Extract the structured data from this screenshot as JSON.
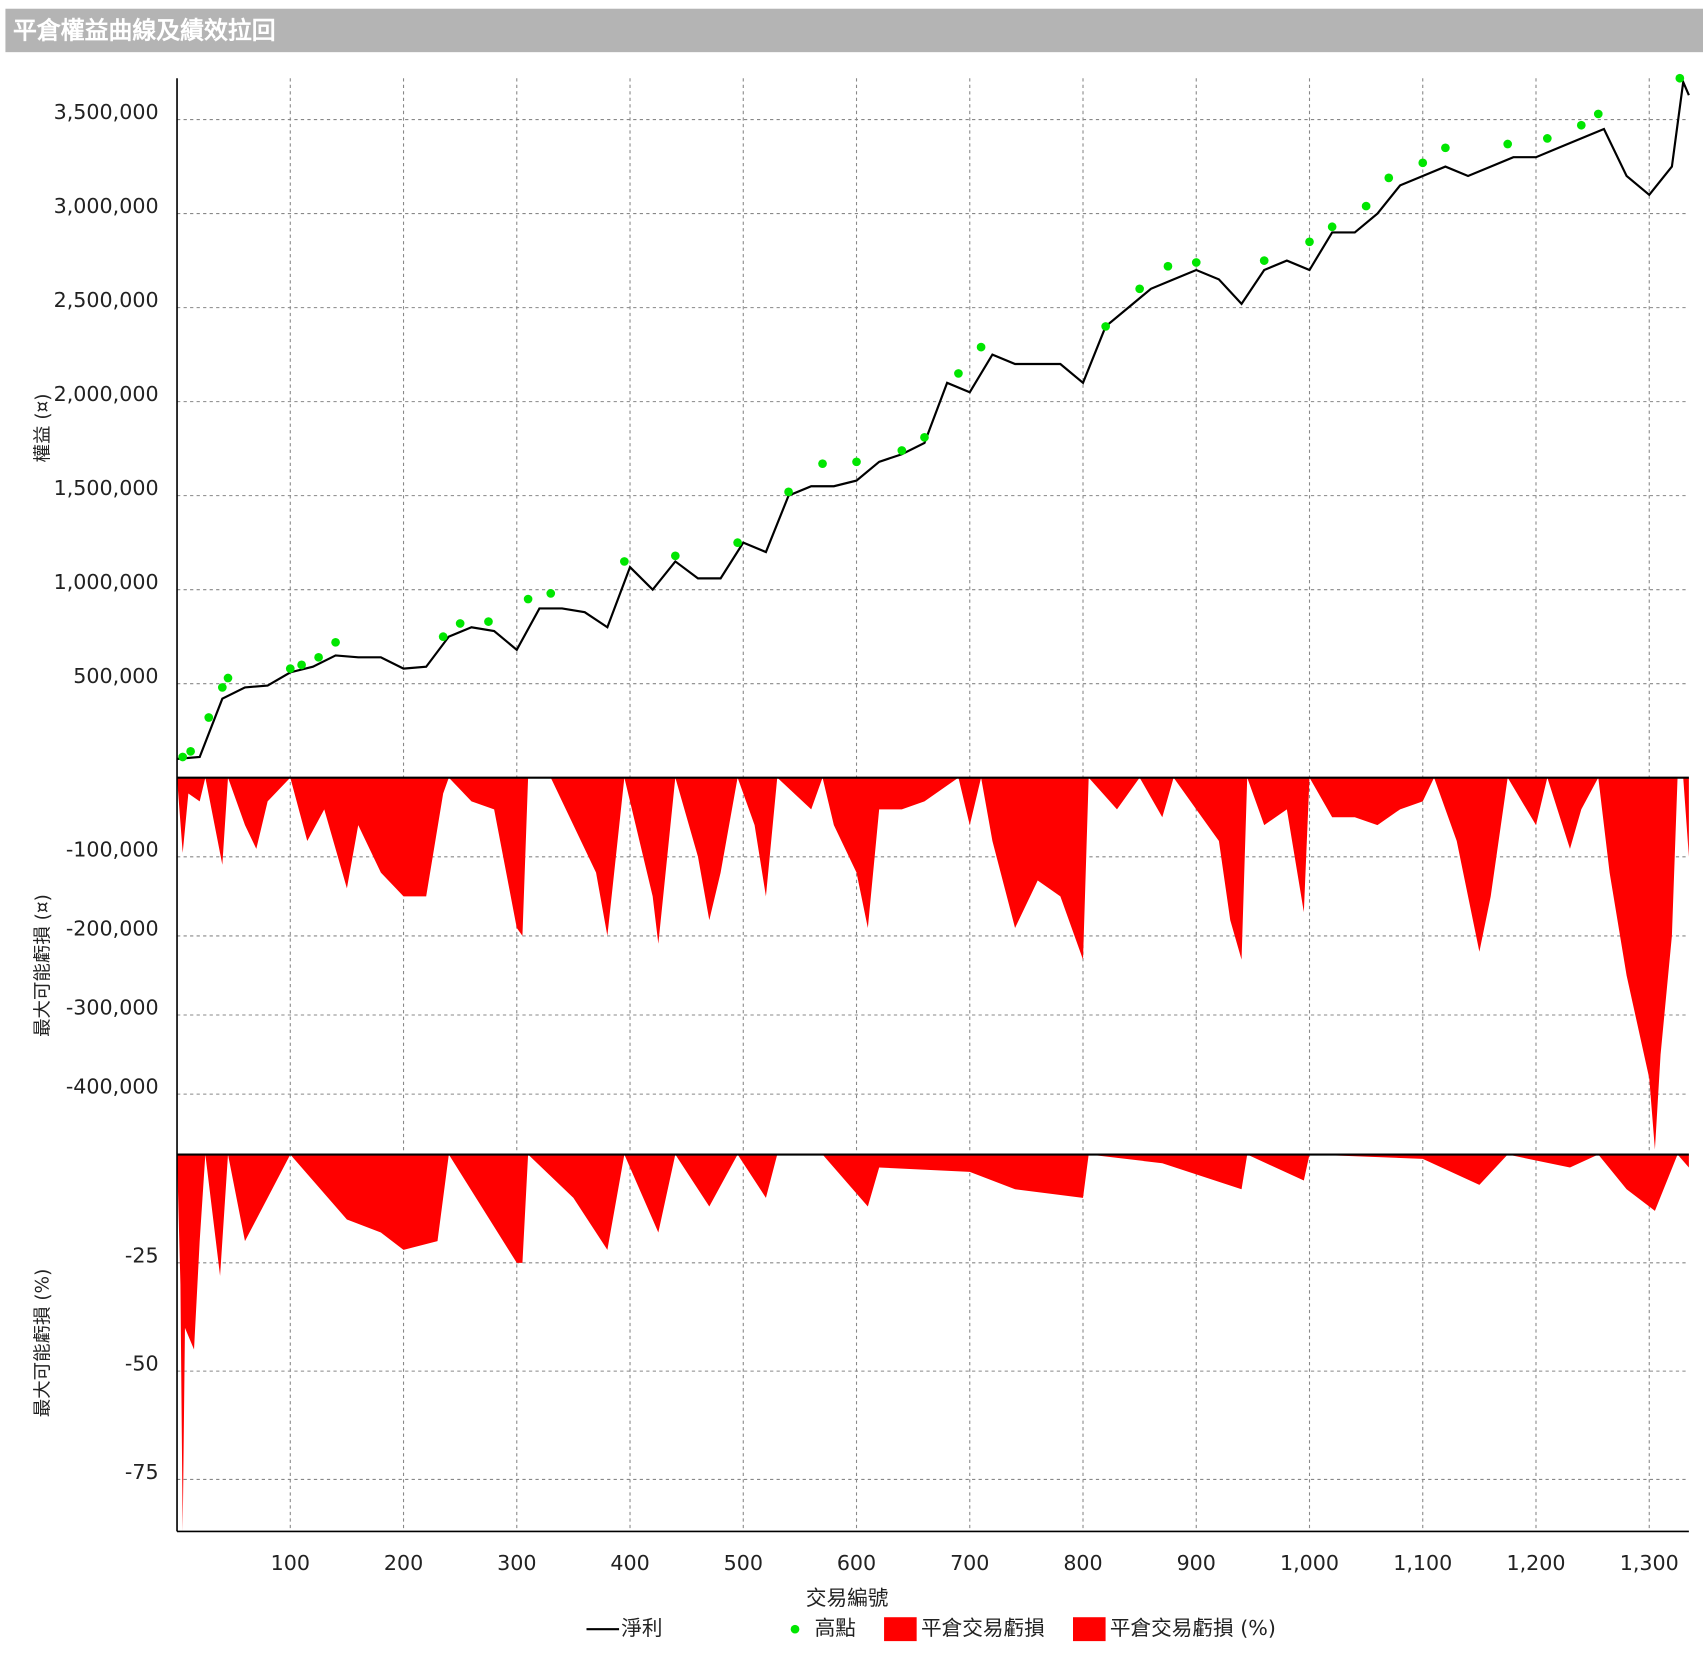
{
  "chart_data": [
    {
      "type": "line",
      "title": "平倉權益曲線及績效拉回",
      "ylabel": "權益 (¤)",
      "ylim": [
        0,
        3720000
      ],
      "yticks": [
        {
          "value": 500000,
          "label": "500,000"
        },
        {
          "value": 1000000,
          "label": "1,000,000"
        },
        {
          "value": 1500000,
          "label": "1,500,000"
        },
        {
          "value": 2000000,
          "label": "2,000,000"
        },
        {
          "value": 2500000,
          "label": "2,500,000"
        },
        {
          "value": 3000000,
          "label": "3,000,000"
        },
        {
          "value": 3500000,
          "label": "3,500,000"
        }
      ],
      "x": [
        0,
        20,
        40,
        60,
        80,
        100,
        120,
        140,
        160,
        180,
        200,
        220,
        240,
        260,
        280,
        300,
        320,
        340,
        360,
        380,
        400,
        420,
        440,
        460,
        480,
        500,
        520,
        540,
        560,
        580,
        600,
        620,
        640,
        660,
        680,
        700,
        720,
        740,
        760,
        780,
        800,
        820,
        840,
        860,
        880,
        900,
        920,
        940,
        960,
        980,
        1000,
        1020,
        1040,
        1060,
        1080,
        1100,
        1120,
        1140,
        1160,
        1180,
        1200,
        1220,
        1240,
        1260,
        1280,
        1300,
        1320,
        1330,
        1335
      ],
      "series": [
        {
          "name": "淨利",
          "type": "line",
          "color": "#000000",
          "values": [
            100000,
            110000,
            420000,
            480000,
            490000,
            560000,
            590000,
            650000,
            640000,
            640000,
            580000,
            590000,
            750000,
            800000,
            780000,
            680000,
            900000,
            900000,
            880000,
            800000,
            1120000,
            1000000,
            1150000,
            1060000,
            1060000,
            1250000,
            1200000,
            1500000,
            1550000,
            1550000,
            1580000,
            1680000,
            1720000,
            1780000,
            2100000,
            2050000,
            2250000,
            2200000,
            2200000,
            2200000,
            2100000,
            2400000,
            2500000,
            2600000,
            2650000,
            2700000,
            2650000,
            2520000,
            2700000,
            2750000,
            2700000,
            2900000,
            2900000,
            3000000,
            3150000,
            3200000,
            3250000,
            3200000,
            3250000,
            3300000,
            3300000,
            3350000,
            3400000,
            3450000,
            3200000,
            3100000,
            3250000,
            3700000,
            3630000
          ]
        },
        {
          "name": "高點",
          "type": "scatter",
          "color": "#00e600",
          "x": [
            5,
            12,
            28,
            40,
            45,
            100,
            110,
            125,
            140,
            235,
            250,
            275,
            310,
            330,
            395,
            440,
            495,
            540,
            570,
            600,
            640,
            660,
            690,
            710,
            820,
            850,
            875,
            900,
            960,
            1000,
            1020,
            1050,
            1070,
            1100,
            1120,
            1175,
            1210,
            1240,
            1255,
            1327
          ],
          "values": [
            110000,
            140000,
            320000,
            480000,
            530000,
            580000,
            600000,
            640000,
            720000,
            750000,
            820000,
            830000,
            950000,
            980000,
            1150000,
            1180000,
            1250000,
            1520000,
            1670000,
            1680000,
            1740000,
            1810000,
            2150000,
            2290000,
            2400000,
            2600000,
            2720000,
            2740000,
            2750000,
            2850000,
            2930000,
            3040000,
            3190000,
            3270000,
            3350000,
            3370000,
            3400000,
            3470000,
            3530000,
            3720000
          ]
        }
      ]
    },
    {
      "type": "area",
      "ylabel": "最大可能虧損 (¤)",
      "ylim": [
        -475000,
        0
      ],
      "yticks": [
        {
          "value": -100000,
          "label": "-100,000"
        },
        {
          "value": -200000,
          "label": "-200,000"
        },
        {
          "value": -300000,
          "label": "-300,000"
        },
        {
          "value": -400000,
          "label": "-400,000"
        }
      ],
      "x": [
        0,
        5,
        10,
        20,
        25,
        40,
        45,
        60,
        70,
        80,
        100,
        115,
        130,
        150,
        160,
        180,
        200,
        220,
        235,
        240,
        260,
        280,
        300,
        305,
        310,
        330,
        350,
        370,
        380,
        395,
        420,
        425,
        440,
        460,
        470,
        480,
        495,
        510,
        520,
        530,
        560,
        570,
        580,
        600,
        610,
        620,
        640,
        660,
        690,
        700,
        710,
        720,
        740,
        760,
        780,
        800,
        805,
        830,
        850,
        870,
        880,
        900,
        920,
        930,
        940,
        945,
        960,
        980,
        995,
        1000,
        1020,
        1040,
        1060,
        1080,
        1100,
        1110,
        1130,
        1140,
        1150,
        1160,
        1175,
        1200,
        1210,
        1230,
        1240,
        1255,
        1265,
        1280,
        1300,
        1305,
        1310,
        1320,
        1325,
        1330,
        1335
      ],
      "series": [
        {
          "name": "平倉交易虧損",
          "color": "#ff0000",
          "values": [
            0,
            -95000,
            -20000,
            -30000,
            0,
            -110000,
            0,
            -60000,
            -90000,
            -30000,
            0,
            -80000,
            -40000,
            -140000,
            -60000,
            -120000,
            -150000,
            -150000,
            -20000,
            0,
            -30000,
            -40000,
            -190000,
            -200000,
            0,
            0,
            -60000,
            -120000,
            -200000,
            0,
            -150000,
            -210000,
            0,
            -100000,
            -180000,
            -120000,
            0,
            -60000,
            -150000,
            0,
            -40000,
            0,
            -60000,
            -120000,
            -190000,
            -40000,
            -40000,
            -30000,
            0,
            -60000,
            0,
            -80000,
            -190000,
            -130000,
            -150000,
            -230000,
            0,
            -40000,
            0,
            -50000,
            0,
            -40000,
            -80000,
            -180000,
            -230000,
            0,
            -60000,
            -40000,
            -170000,
            0,
            -50000,
            -50000,
            -60000,
            -40000,
            -30000,
            0,
            -80000,
            -150000,
            -220000,
            -150000,
            0,
            -60000,
            0,
            -90000,
            -40000,
            0,
            -120000,
            -250000,
            -380000,
            -470000,
            -350000,
            -200000,
            0,
            0,
            -100000
          ]
        }
      ]
    },
    {
      "type": "area",
      "ylabel": "最大可能虧損 (%)",
      "xlabel": "交易編號",
      "ylim": [
        -87,
        0
      ],
      "yticks": [
        -75,
        -50,
        -25
      ],
      "xlim": [
        0,
        1335
      ],
      "xticks": [
        100,
        200,
        300,
        400,
        500,
        600,
        700,
        800,
        900,
        {
          "value": 1000,
          "label": "1,000"
        },
        {
          "value": 1100,
          "label": "1,100"
        },
        {
          "value": 1200,
          "label": "1,200"
        },
        {
          "value": 1300,
          "label": "1,300"
        }
      ],
      "x": [
        0,
        3,
        5,
        7,
        15,
        20,
        25,
        38,
        45,
        60,
        80,
        100,
        150,
        180,
        200,
        230,
        240,
        300,
        305,
        310,
        350,
        380,
        395,
        425,
        440,
        470,
        495,
        520,
        530,
        570,
        610,
        620,
        700,
        740,
        800,
        805,
        870,
        940,
        945,
        995,
        1000,
        1100,
        1150,
        1175,
        1230,
        1255,
        1280,
        1305,
        1325,
        1335
      ],
      "series": [
        {
          "name": "平倉交易虧損 (%)",
          "color": "#ff0000",
          "values": [
            0,
            -30,
            -87,
            -40,
            -45,
            -20,
            0,
            -28,
            0,
            -20,
            -10,
            0,
            -15,
            -18,
            -22,
            -20,
            0,
            -25,
            -25,
            0,
            -10,
            -22,
            0,
            -18,
            0,
            -12,
            0,
            -10,
            0,
            0,
            -12,
            -3,
            -4,
            -8,
            -10,
            0,
            -2,
            -8,
            0,
            -6,
            0,
            -1,
            -7,
            0,
            -3,
            0,
            -8,
            -13,
            0,
            -3
          ]
        }
      ]
    }
  ]
}
